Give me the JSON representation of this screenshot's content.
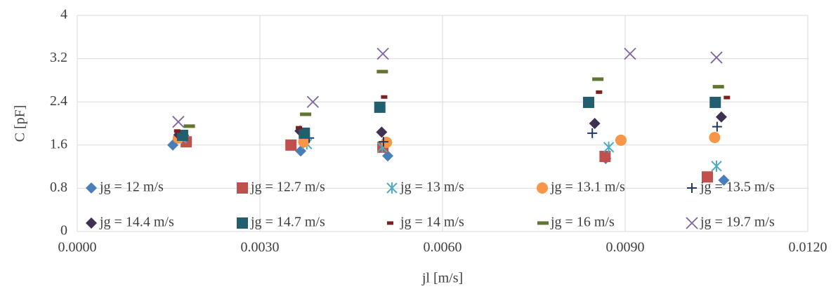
{
  "chart_data": {
    "type": "scatter",
    "x_label": "jl [m/s]",
    "y_label": "C [pF]",
    "xlim": [
      0,
      0.012
    ],
    "ylim": [
      0,
      4
    ],
    "xticks": [
      {
        "value": 0,
        "label": "0.0000"
      },
      {
        "value": 0.003,
        "label": "0.0030"
      },
      {
        "value": 0.006,
        "label": "0.0060"
      },
      {
        "value": 0.009,
        "label": "0.0090"
      },
      {
        "value": 0.012,
        "label": "0.0120"
      }
    ],
    "yticks": [
      0,
      0.8,
      1.6,
      2.4,
      3.2,
      4
    ],
    "grid": true,
    "legend": "lower center",
    "series": [
      {
        "name": "jg = 12 m/s",
        "color": "#4a7ebb",
        "marker": "diamond",
        "x": [
          0.00157,
          0.00367,
          0.0051,
          0.00868,
          0.01062
        ],
        "values": [
          1.6,
          1.49,
          1.4,
          1.35,
          0.95
        ]
      },
      {
        "name": "jg = 12.7 m/s",
        "color": "#c0504d",
        "marker": "square",
        "x": [
          0.00179,
          0.00351,
          0.00502,
          0.00867,
          0.01035
        ],
        "values": [
          1.66,
          1.6,
          1.56,
          1.39,
          1.01
        ]
      },
      {
        "name": "jg = 13 m/s",
        "color": "#4bacc6",
        "marker": "asterisk",
        "x": [
          0.00171,
          0.00377,
          0.00501,
          0.00873,
          0.0105
        ],
        "values": [
          1.73,
          1.62,
          1.56,
          1.56,
          1.21
        ]
      },
      {
        "name": "jg = 13.1 m/s",
        "color": "#f79646",
        "marker": "circle",
        "x": [
          0.00166,
          0.00372,
          0.00508,
          0.00893,
          0.01047
        ],
        "values": [
          1.73,
          1.66,
          1.65,
          1.69,
          1.74
        ]
      },
      {
        "name": "jg = 13.5 m/s",
        "color": "#1f3864",
        "marker": "plus",
        "x": [
          0.00175,
          0.00381,
          0.00503,
          0.00846,
          0.01051
        ],
        "values": [
          1.78,
          1.73,
          1.66,
          1.82,
          1.94
        ]
      },
      {
        "name": "jg = 14.4 m/s",
        "color": "#403152",
        "marker": "diamond",
        "x": [
          0.00167,
          0.00366,
          0.005,
          0.0085,
          0.01058
        ],
        "values": [
          1.79,
          1.86,
          1.84,
          2.0,
          2.12
        ]
      },
      {
        "name": "jg = 14.7 m/s",
        "color": "#215f6e",
        "marker": "square",
        "x": [
          0.00173,
          0.00373,
          0.00497,
          0.0084,
          0.01048
        ],
        "values": [
          1.78,
          1.82,
          2.3,
          2.39,
          2.39
        ]
      },
      {
        "name": "jg = 14 m/s",
        "color": "#7b1f1f",
        "marker": "dash",
        "x": [
          0.00167,
          0.00367,
          0.00507,
          0.0086,
          0.0107
        ],
        "values": [
          1.86,
          1.92,
          2.49,
          2.58,
          2.48
        ]
      },
      {
        "name": "jg = 16 m/s",
        "color": "#5f7530",
        "marker": "dash",
        "x": [
          0.00183,
          0.00374,
          0.005,
          0.00854,
          0.01052
        ],
        "values": [
          1.95,
          2.17,
          2.96,
          2.82,
          2.68
        ]
      },
      {
        "name": "jg = 19.7 m/s",
        "color": "#8064a2",
        "marker": "x",
        "x": [
          0.00166,
          0.00387,
          0.00502,
          0.00908,
          0.0105
        ],
        "values": [
          2.03,
          2.4,
          3.29,
          3.29,
          3.22
        ]
      }
    ]
  }
}
